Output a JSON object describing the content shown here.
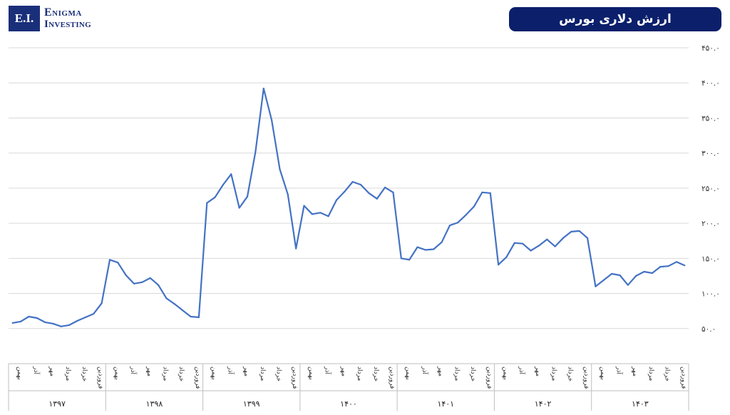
{
  "brand": {
    "abbr": "E.I.",
    "line1": "Enigma",
    "line2": "Investing"
  },
  "title": "ارزش دلاری بورس",
  "colors": {
    "brand": "#1a2f7a",
    "title_bg": "#0b1f6b",
    "line": "#4472c4",
    "grid": "#d9d9d9"
  },
  "chart_data": {
    "type": "line",
    "title": "ارزش دلاری بورس",
    "ylim": [
      0,
      450
    ],
    "yticks": [
      0,
      50,
      100,
      150,
      200,
      250,
      300,
      350,
      400,
      450
    ],
    "ytick_labels": [
      "",
      "۵۰.۰",
      "۱۰۰.۰",
      "۱۵۰.۰",
      "۲۰۰.۰",
      "۲۵۰.۰",
      "۳۰۰.۰",
      "۳۵۰.۰",
      "۴۰۰.۰",
      "۴۵۰.۰"
    ],
    "grid": true,
    "y_axis_position": "right",
    "groups": [
      {
        "label": "۱۳۹۷",
        "months": [
          "بهمن",
          "آذر",
          "مهر",
          "مرداد",
          "خرداد",
          "فروردین"
        ]
      },
      {
        "label": "۱۳۹۸",
        "months": [
          "بهمن",
          "آذر",
          "مهر",
          "مرداد",
          "خرداد",
          "فروردین"
        ]
      },
      {
        "label": "۱۳۹۹",
        "months": [
          "بهمن",
          "آذر",
          "مهر",
          "مرداد",
          "خرداد",
          "فروردین"
        ]
      },
      {
        "label": "۱۴۰۰",
        "months": [
          "بهمن",
          "آذر",
          "مهر",
          "مرداد",
          "خرداد",
          "فروردین"
        ]
      },
      {
        "label": "۱۴۰۱",
        "months": [
          "بهمن",
          "آذر",
          "مهر",
          "مرداد",
          "خرداد",
          "فروردین"
        ]
      },
      {
        "label": "۱۴۰۲",
        "months": [
          "بهمن",
          "آذر",
          "مهر",
          "مرداد",
          "خرداد",
          "فروردین"
        ]
      },
      {
        "label": "۱۴۰۳",
        "months": [
          "بهمن",
          "آذر",
          "مهر",
          "مرداد",
          "خرداد",
          "فروردین"
        ]
      }
    ],
    "series": [
      {
        "values": [
          58,
          60,
          67,
          65,
          59,
          57,
          53,
          55,
          61,
          66,
          71,
          86,
          148,
          144,
          126,
          114,
          116,
          122,
          112,
          93,
          85,
          76,
          67,
          66,
          229,
          237,
          255,
          270,
          222,
          238,
          302,
          392,
          347,
          277,
          241,
          164,
          225,
          213,
          215,
          210,
          233,
          245,
          259,
          255,
          243,
          235,
          251,
          244,
          150,
          148,
          166,
          162,
          163,
          173,
          197,
          201,
          212,
          224,
          244,
          243,
          141,
          152,
          172,
          171,
          161,
          168,
          177,
          167,
          179,
          188,
          189,
          179,
          110,
          119,
          128,
          126,
          112,
          125,
          131,
          129,
          138,
          139,
          145,
          140
        ]
      }
    ]
  }
}
